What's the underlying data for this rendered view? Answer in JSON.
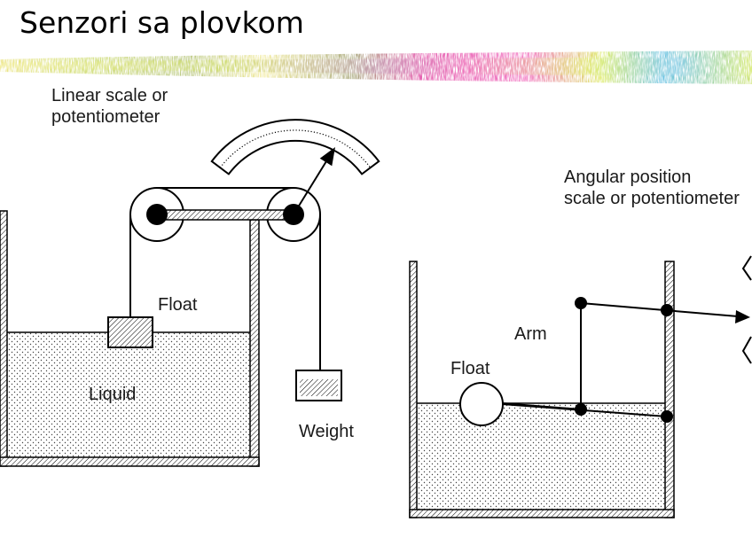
{
  "slide": {
    "title": "Senzori sa plovkom"
  },
  "linear_diagram": {
    "scale_label_line1": "Linear scale or",
    "scale_label_line2": "potentiometer",
    "float_label": "Float",
    "liquid_label": "Liquid",
    "weight_label": "Weight"
  },
  "angular_diagram": {
    "scale_label_line1": "Angular position",
    "scale_label_line2": "scale or potentiometer",
    "arm_label": "Arm",
    "float_label": "Float"
  },
  "colors": {
    "background": "#ffffff",
    "ink": "#000000",
    "band_yellow": "#e8e070",
    "band_magenta": "#e040a0",
    "band_blue": "#50b8e0",
    "band_green": "#c8e060"
  }
}
